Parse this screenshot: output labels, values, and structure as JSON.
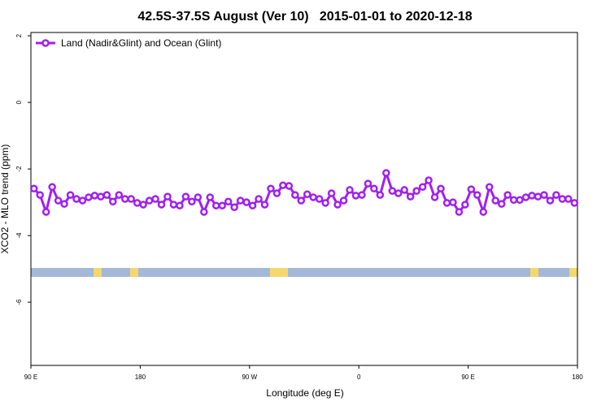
{
  "chart_data": {
    "type": "line",
    "title": "42.5S-37.5S August (Ver 10)   2015-01-01 to 2020-12-18",
    "x_label": "Longitude (deg E)",
    "y_label": "XCO2 - MLO trend (ppm)",
    "x": [
      92.5,
      97.5,
      102.5,
      107.5,
      112.5,
      117.5,
      122.5,
      127.5,
      132.5,
      137.5,
      142.5,
      147.5,
      152.5,
      157.5,
      162.5,
      167.5,
      172.5,
      177.5,
      182.5,
      187.5,
      192.5,
      197.5,
      202.5,
      207.5,
      212.5,
      217.5,
      222.5,
      227.5,
      232.5,
      237.5,
      242.5,
      247.5,
      252.5,
      257.5,
      262.5,
      267.5,
      272.5,
      277.5,
      282.5,
      287.5,
      292.5,
      297.5,
      302.5,
      307.5,
      312.5,
      317.5,
      322.5,
      327.5,
      332.5,
      337.5,
      342.5,
      347.5,
      352.5,
      357.5,
      362.5,
      367.5,
      372.5,
      377.5,
      382.5,
      387.5,
      392.5,
      397.5,
      402.5,
      407.5,
      412.5,
      417.5,
      422.5,
      427.5,
      432.5,
      437.5,
      442.5,
      447.5,
      452.5,
      457.5,
      462.5,
      467.5,
      472.5,
      477.5,
      482.5,
      487.5,
      492.5,
      497.5,
      502.5,
      507.5,
      512.5,
      517.5,
      522.5,
      527.5,
      532.5,
      537.5
    ],
    "series": [
      {
        "name": "Land (Nadir&Glint) and Ocean (Glint)",
        "color": "#a020f0",
        "values": [
          -2.59,
          -2.78,
          -3.29,
          -2.54,
          -2.95,
          -3.05,
          -2.78,
          -2.9,
          -2.95,
          -2.85,
          -2.8,
          -2.83,
          -2.78,
          -2.98,
          -2.78,
          -2.9,
          -2.9,
          -3.02,
          -3.07,
          -2.95,
          -2.9,
          -3.07,
          -2.83,
          -3.07,
          -3.1,
          -2.83,
          -2.98,
          -2.85,
          -3.29,
          -2.85,
          -3.1,
          -3.1,
          -2.98,
          -3.15,
          -2.95,
          -3.0,
          -3.1,
          -2.9,
          -3.07,
          -2.59,
          -2.73,
          -2.49,
          -2.51,
          -2.78,
          -2.95,
          -2.76,
          -2.85,
          -2.9,
          -3.02,
          -2.73,
          -3.07,
          -2.95,
          -2.63,
          -2.8,
          -2.78,
          -2.44,
          -2.59,
          -2.78,
          -2.12,
          -2.66,
          -2.73,
          -2.63,
          -2.83,
          -2.66,
          -2.54,
          -2.34,
          -2.85,
          -2.59,
          -3.02,
          -3.0,
          -3.29,
          -3.07,
          -2.61,
          -2.78,
          -3.29,
          -2.54,
          -2.95,
          -3.05,
          -2.78,
          -2.93,
          -2.93,
          -2.85,
          -2.8,
          -2.83,
          -2.78,
          -2.95,
          -2.78,
          -2.9,
          -2.9,
          -3.02
        ]
      }
    ],
    "xlim": [
      90,
      540
    ],
    "xticks": [
      {
        "value": 90,
        "label": "90 E"
      },
      180,
      {
        "value": 270,
        "label": "90 W"
      },
      {
        "value": 360,
        "label": "0"
      },
      {
        "value": 450,
        "label": "90 E"
      },
      {
        "value": 540,
        "label": "180"
      }
    ],
    "ylim": [
      -7.9,
      2.1
    ],
    "yticks": [
      2,
      0,
      -2,
      -4,
      -6
    ],
    "legend": "top-left"
  }
}
